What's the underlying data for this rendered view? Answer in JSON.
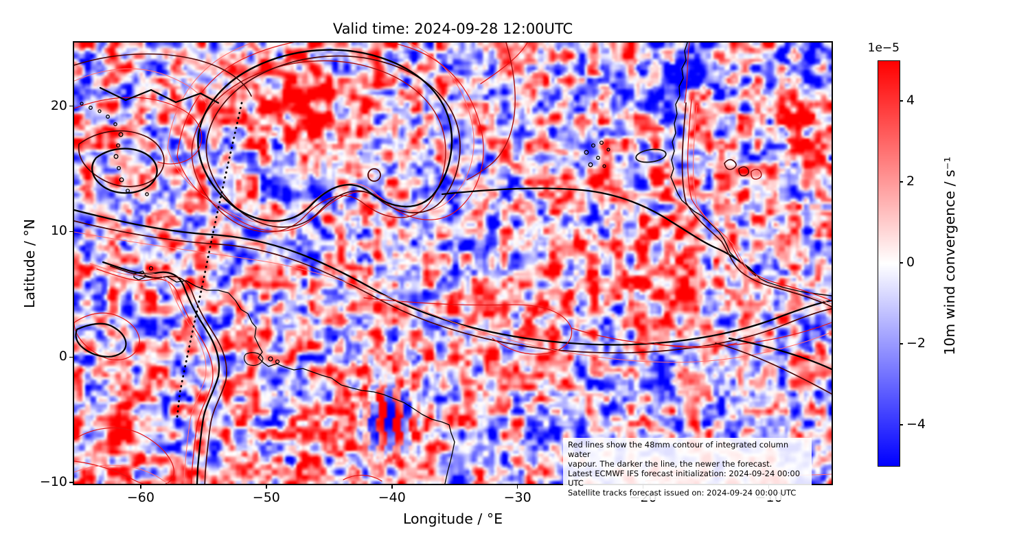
{
  "figure": {
    "title": "Valid time: 2024-09-28 12:00UTC",
    "background_color": "#ffffff"
  },
  "axes": {
    "xlabel": "Longitude / °E",
    "ylabel": "Latitude / °N",
    "x_range": [
      -65.3,
      -5.0
    ],
    "y_range": [
      -10.1,
      25.06
    ],
    "x_ticks": [
      {
        "value": -60,
        "label": "−60"
      },
      {
        "value": -50,
        "label": "−50"
      },
      {
        "value": -40,
        "label": "−40"
      },
      {
        "value": -30,
        "label": "−30"
      },
      {
        "value": -20,
        "label": "−20"
      },
      {
        "value": -10,
        "label": "−10"
      }
    ],
    "y_ticks": [
      {
        "value": 20,
        "label": "20"
      },
      {
        "value": 10,
        "label": "10"
      },
      {
        "value": 0,
        "label": "0"
      },
      {
        "value": -10,
        "label": "−10"
      }
    ]
  },
  "colorbar": {
    "offset_text": "1e−5",
    "label": "10m wind convergence / s⁻¹",
    "vmin": -5,
    "vmax": 5,
    "ticks": [
      {
        "value": 4,
        "label": "4"
      },
      {
        "value": 2,
        "label": "2"
      },
      {
        "value": 0,
        "label": "0"
      },
      {
        "value": -2,
        "label": "−2"
      },
      {
        "value": -4,
        "label": "−4"
      }
    ],
    "cmap": {
      "max_color": "#ff0000",
      "mid_color": "#ffffff",
      "min_color": "#0000ff"
    }
  },
  "annotation": {
    "lines": [
      "Red lines show the 48mm contour of integrated column water",
      "vapour. The darker the line, the newer the forecast.",
      "Latest ECMWF IFS forecast initialization: 2024-09-24 00:00 UTC",
      "Satellite tracks forecast issued on: 2024-09-24 00:00 UTC"
    ]
  },
  "overlays": {
    "coastline_color": "#000000",
    "satellite_track": {
      "color": "#000000",
      "style": "dotted"
    },
    "iwv_contour_shades": [
      "#ff7070",
      "#e31212",
      "#a80b0b",
      "#4a0505",
      "#000000"
    ],
    "iwv_contour_meaning": "darker red = newer forecast; black = newest"
  },
  "chart_data": {
    "type": "heatmap",
    "title": "Valid time: 2024-09-28 12:00UTC",
    "xlabel": "Longitude / °E",
    "ylabel": "Latitude / °N",
    "xlim": [
      -65.3,
      -5.0
    ],
    "ylim": [
      -10.1,
      25.06
    ],
    "xticks": [
      -60,
      -50,
      -40,
      -30,
      -20,
      -10
    ],
    "yticks": [
      20,
      10,
      0,
      -10
    ],
    "grid": false,
    "colorbar": {
      "label": "10m wind convergence / s⁻¹",
      "offset_text": "1e−5",
      "ticks": [
        4,
        2,
        0,
        -2,
        -4
      ],
      "vmin_displayed": -5e-05,
      "vmax_displayed": 5e-05,
      "colormap": "bwr (red = convergence, white = 0, blue = divergence)"
    },
    "field_description": "Speckled 10m wind-convergence field over the tropical Atlantic; alternating red/blue blobs of ~1° scale spanning roughly ±5e-5 s⁻¹; strong red patches near 18°N/-13°E and 8°N/-17°E, strong blue near 22°N/-16°E",
    "overlays": [
      {
        "layer": "coastlines",
        "color": "black",
        "features": [
          "Lesser Antilles arc",
          "Trinidad",
          "Venezuela–Guianas coast",
          "Amazon mouth with Marajó island",
          "Northeast Brazil bulge exiting bottom near -36°E",
          "West African coast from ~25°N to Gulf of Guinea",
          "Cape Verde islands"
        ]
      },
      {
        "layer": "IWV 48mm contours",
        "style": "red shades, darker = newer forecast",
        "locations": "large closed loop complex ~14–24°N between -55 and -30°E; long band sweeping from (-65°E, 8–11°N) across the basin to (-5°E, 1–3°N); strands hugging the African and South American coasts; loops in the SW corner"
      },
      {
        "layer": "satellite track",
        "style": "black dotted line",
        "from_lon_lat": [
          -51.9,
          20.3
        ],
        "to_lon_lat": [
          -57.1,
          -4.8
        ]
      }
    ],
    "annotation": "Red lines show the 48mm contour of integrated column water vapour. The darker the line, the newer the forecast. | Latest ECMWF IFS forecast initialization: 2024-09-24 00:00 UTC | Satellite tracks forecast issued on: 2024-09-24 00:00 UTC"
  }
}
